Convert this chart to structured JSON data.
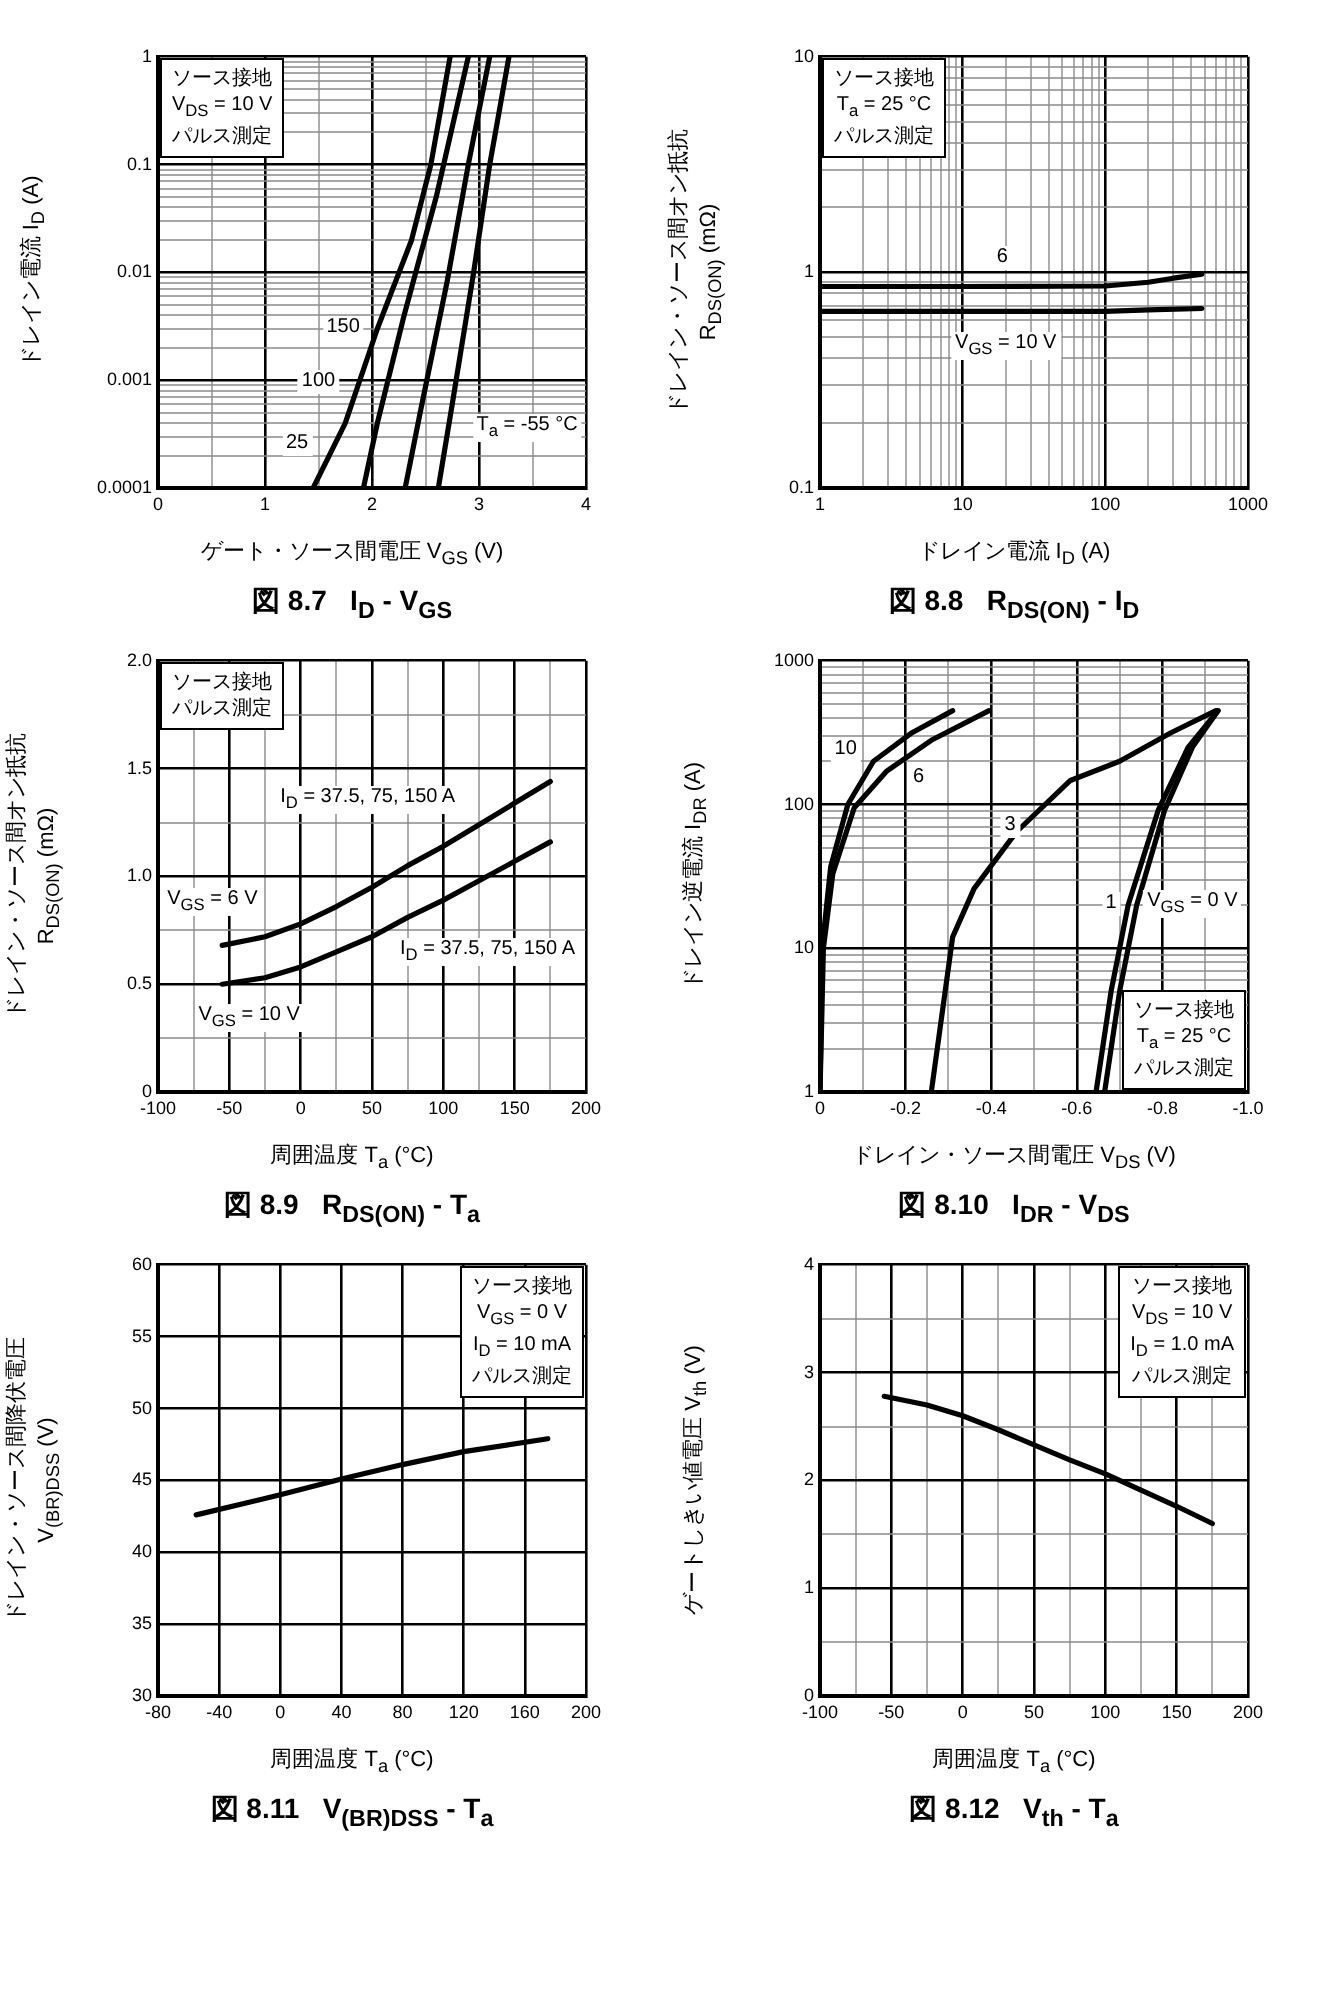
{
  "chart_data": [
    {
      "type": "line",
      "title": "図 8.7   I$_{D}$ - V$_{GS}$",
      "xlabel": "ゲート・ソース間電圧 V$_{GS}$ (V)",
      "ylabel": "ドレイン電流 I$_{D}$ (A)",
      "log": "y",
      "grid": true,
      "legend": false,
      "marker": "none",
      "line_style": "solid",
      "xlim": [
        0,
        4
      ],
      "xticks": [
        0,
        {
          "value": 0.5,
          "label": null
        },
        1,
        {
          "value": 1.5,
          "label": null
        },
        2,
        {
          "value": 2.5,
          "label": null
        },
        3,
        {
          "value": 3.5,
          "label": null
        },
        4
      ],
      "ylim": [
        0.0001,
        1
      ],
      "yticks": [
        0.0001,
        {
          "value": 0.0002,
          "label": null
        },
        {
          "value": 0.0003,
          "label": null
        },
        {
          "value": 0.0004,
          "label": null
        },
        {
          "value": 0.0005,
          "label": null
        },
        {
          "value": 0.0006,
          "label": null
        },
        {
          "value": 0.0007,
          "label": null
        },
        {
          "value": 0.0008,
          "label": null
        },
        {
          "value": 0.0009,
          "label": null
        },
        0.001,
        {
          "value": 0.002,
          "label": null
        },
        {
          "value": 0.003,
          "label": null
        },
        {
          "value": 0.004,
          "label": null
        },
        {
          "value": 0.005,
          "label": null
        },
        {
          "value": 0.006,
          "label": null
        },
        {
          "value": 0.007,
          "label": null
        },
        {
          "value": 0.008,
          "label": null
        },
        {
          "value": 0.009,
          "label": null
        },
        0.01,
        {
          "value": 0.02,
          "label": null
        },
        {
          "value": 0.03,
          "label": null
        },
        {
          "value": 0.04,
          "label": null
        },
        {
          "value": 0.05,
          "label": null
        },
        {
          "value": 0.06,
          "label": null
        },
        {
          "value": 0.07,
          "label": null
        },
        {
          "value": 0.08,
          "label": null
        },
        {
          "value": 0.09,
          "label": null
        },
        0.1,
        {
          "value": 0.2,
          "label": null
        },
        {
          "value": 0.3,
          "label": null
        },
        {
          "value": 0.4,
          "label": null
        },
        {
          "value": 0.5,
          "label": null
        },
        {
          "value": 0.6,
          "label": null
        },
        {
          "value": 0.7,
          "label": null
        },
        {
          "value": 0.8,
          "label": null
        },
        {
          "value": 0.9,
          "label": null
        },
        1
      ],
      "series": [
        {
          "color": "#000000",
          "x": [
            1.45,
            1.6,
            1.75,
            2.05,
            2.37,
            2.55,
            2.73
          ],
          "values": [
            0.0001,
            0.0002,
            0.0004,
            0.003,
            0.02,
            0.1,
            1
          ]
        },
        {
          "color": "#000000",
          "x": [
            1.92,
            2.05,
            2.3,
            2.6,
            2.9
          ],
          "values": [
            0.0001,
            0.0004,
            0.004,
            0.05,
            1
          ]
        },
        {
          "color": "#000000",
          "x": [
            2.31,
            2.45,
            2.7,
            2.9,
            3.1
          ],
          "values": [
            0.0001,
            0.0005,
            0.008,
            0.1,
            1
          ]
        },
        {
          "color": "#000000",
          "x": [
            2.62,
            2.75,
            2.95,
            3.1,
            3.28
          ],
          "values": [
            0.0001,
            0.0006,
            0.01,
            0.1,
            1
          ]
        }
      ],
      "annotations": [
        "ソース接地",
        "V$_{DS}$ = 10 V",
        "パルス測定",
        {
          "text": "150",
          "x": 1.73,
          "y": 0.003
        },
        {
          "text": "100",
          "x": 1.5,
          "y": 0.00095
        },
        {
          "text": "25",
          "x": 1.3,
          "y": 0.00026
        },
        "T$_{a}$ = -55 °C"
      ]
    },
    {
      "type": "line",
      "title": "図 8.8   R$_{DS(ON)}$ - I$_{D}$",
      "xlabel": "ドレイン電流 I$_{D}$ (A)",
      "ylabel": "ドレイン・ソース間オン抵抗\nR$_{DS(ON)}$ (mΩ)",
      "log": "xy",
      "grid": true,
      "legend": false,
      "marker": "none",
      "line_style": "solid",
      "xlim": [
        1,
        1000
      ],
      "xticks": [
        1,
        {
          "value": 2,
          "label": null
        },
        {
          "value": 3,
          "label": null
        },
        {
          "value": 4,
          "label": null
        },
        {
          "value": 5,
          "label": null
        },
        {
          "value": 6,
          "label": null
        },
        {
          "value": 7,
          "label": null
        },
        {
          "value": 8,
          "label": null
        },
        {
          "value": 9,
          "label": null
        },
        10,
        {
          "value": 20,
          "label": null
        },
        {
          "value": 30,
          "label": null
        },
        {
          "value": 40,
          "label": null
        },
        {
          "value": 50,
          "label": null
        },
        {
          "value": 60,
          "label": null
        },
        {
          "value": 70,
          "label": null
        },
        {
          "value": 80,
          "label": null
        },
        {
          "value": 90,
          "label": null
        },
        100,
        {
          "value": 200,
          "label": null
        },
        {
          "value": 300,
          "label": null
        },
        {
          "value": 400,
          "label": null
        },
        {
          "value": 500,
          "label": null
        },
        {
          "value": 600,
          "label": null
        },
        {
          "value": 700,
          "label": null
        },
        {
          "value": 800,
          "label": null
        },
        {
          "value": 900,
          "label": null
        },
        1000
      ],
      "ylim": [
        0.1,
        10
      ],
      "yticks": [
        0.1,
        {
          "value": 0.2,
          "label": null
        },
        {
          "value": 0.3,
          "label": null
        },
        {
          "value": 0.4,
          "label": null
        },
        {
          "value": 0.5,
          "label": null
        },
        {
          "value": 0.6,
          "label": null
        },
        {
          "value": 0.7,
          "label": null
        },
        {
          "value": 0.8,
          "label": null
        },
        {
          "value": 0.9,
          "label": null
        },
        1,
        {
          "value": 2,
          "label": null
        },
        {
          "value": 3,
          "label": null
        },
        {
          "value": 4,
          "label": null
        },
        {
          "value": 5,
          "label": null
        },
        {
          "value": 6,
          "label": null
        },
        {
          "value": 7,
          "label": null
        },
        {
          "value": 8,
          "label": null
        },
        {
          "value": 9,
          "label": null
        },
        10
      ],
      "series": [
        {
          "color": "#000000",
          "x": [
            1,
            10,
            100,
            200,
            300,
            475
          ],
          "values": [
            0.86,
            0.86,
            0.865,
            0.9,
            0.94,
            0.98
          ]
        },
        {
          "color": "#000000",
          "x": [
            1,
            100,
            200,
            475
          ],
          "values": [
            0.66,
            0.66,
            0.67,
            0.68
          ]
        }
      ],
      "annotations": [
        "ソース接地",
        "T$_{a}$ = 25 °C",
        "パルス測定",
        {
          "text": "6",
          "x": 19,
          "y": 1.16
        },
        "V$_{GS}$ = 10 V"
      ]
    },
    {
      "type": "line",
      "title": "図 8.9   R$_{DS(ON)}$ - T$_{a}$",
      "xlabel": "周囲温度 T$_{a}$ (°C)",
      "ylabel": "ドレイン・ソース間オン抵抗\nR$_{DS(ON)}$ (mΩ)",
      "grid": true,
      "legend": false,
      "marker": "none",
      "line_style": "solid",
      "xlim": [
        -100,
        200
      ],
      "xticks": [
        -100,
        {
          "value": -75,
          "label": null
        },
        -50,
        {
          "value": -25,
          "label": null
        },
        0,
        {
          "value": 25,
          "label": null
        },
        50,
        {
          "value": 75,
          "label": null
        },
        100,
        {
          "value": 125,
          "label": null
        },
        150,
        {
          "value": 175,
          "label": null
        },
        200
      ],
      "ylim": [
        0,
        2
      ],
      "yticks": [
        0,
        {
          "value": 0.25,
          "label": null
        },
        0.5,
        {
          "value": 0.75,
          "label": null
        },
        {
          "value": 1,
          "label": "1.0"
        },
        {
          "value": 1.25,
          "label": null
        },
        1.5,
        {
          "value": 1.75,
          "label": null
        },
        {
          "value": 2,
          "label": "2.0"
        }
      ],
      "series": [
        {
          "color": "#000000",
          "x": [
            -55,
            -25,
            0,
            25,
            50,
            75,
            100,
            125,
            150,
            175
          ],
          "values": [
            0.68,
            0.72,
            0.78,
            0.86,
            0.95,
            1.05,
            1.14,
            1.24,
            1.34,
            1.44
          ]
        },
        {
          "color": "#000000",
          "x": [
            -55,
            -25,
            0,
            25,
            50,
            75,
            100,
            125,
            150,
            175
          ],
          "values": [
            0.5,
            0.53,
            0.58,
            0.65,
            0.72,
            0.81,
            0.89,
            0.98,
            1.07,
            1.16
          ]
        }
      ],
      "annotations": [
        "ソース接地",
        "パルス測定",
        "I$_{D}$ = 37.5, 75, 150 A",
        "I$_{D}$ = 37.5, 75, 150 A",
        "V$_{GS}$ = 6 V",
        "V$_{GS}$ = 10 V"
      ]
    },
    {
      "type": "line",
      "title": "図 8.10   I$_{DR}$ - V$_{DS}$",
      "xlabel": "ドレイン・ソース間電圧 V$_{DS}$ (V)",
      "ylabel": "ドレイン逆電流 I$_{DR}$ (A)",
      "log": "y",
      "grid": true,
      "legend": false,
      "marker": "none",
      "line_style": "solid",
      "xlim": [
        0,
        -1
      ],
      "xticks": [
        0,
        {
          "value": -0.1,
          "label": null
        },
        -0.2,
        {
          "value": -0.3,
          "label": null
        },
        -0.4,
        {
          "value": -0.5,
          "label": null
        },
        -0.6,
        {
          "value": -0.7,
          "label": null
        },
        -0.8,
        {
          "value": -0.9,
          "label": null
        },
        {
          "value": -1,
          "label": "-1.0"
        }
      ],
      "ylim": [
        1,
        1000
      ],
      "yticks": [
        1,
        {
          "value": 2,
          "label": null
        },
        {
          "value": 3,
          "label": null
        },
        {
          "value": 4,
          "label": null
        },
        {
          "value": 5,
          "label": null
        },
        {
          "value": 6,
          "label": null
        },
        {
          "value": 7,
          "label": null
        },
        {
          "value": 8,
          "label": null
        },
        {
          "value": 9,
          "label": null
        },
        10,
        {
          "value": 20,
          "label": null
        },
        {
          "value": 30,
          "label": null
        },
        {
          "value": 40,
          "label": null
        },
        {
          "value": 50,
          "label": null
        },
        {
          "value": 60,
          "label": null
        },
        {
          "value": 70,
          "label": null
        },
        {
          "value": 80,
          "label": null
        },
        {
          "value": 90,
          "label": null
        },
        100,
        {
          "value": 200,
          "label": null
        },
        {
          "value": 300,
          "label": null
        },
        {
          "value": 400,
          "label": null
        },
        {
          "value": 500,
          "label": null
        },
        {
          "value": 600,
          "label": null
        },
        {
          "value": 700,
          "label": null
        },
        {
          "value": 800,
          "label": null
        },
        {
          "value": 900,
          "label": null
        },
        1000
      ],
      "series": [
        {
          "color": "#000000",
          "x": [
            0,
            -0.005,
            -0.025,
            -0.065,
            -0.125,
            -0.215,
            -0.31
          ],
          "values": [
            1,
            10,
            37,
            100,
            200,
            316,
            450
          ]
        },
        {
          "color": "#000000",
          "x": [
            0,
            -0.008,
            -0.03,
            -0.08,
            -0.155,
            -0.26,
            -0.395
          ],
          "values": [
            1,
            10,
            33,
            95,
            170,
            280,
            450
          ]
        },
        {
          "color": "#000000",
          "x": [
            -0.26,
            -0.31,
            -0.36,
            -0.46,
            -0.585,
            -0.7,
            -0.82,
            -0.925
          ],
          "values": [
            1,
            12,
            26,
            65,
            147,
            200,
            316,
            450
          ]
        },
        {
          "color": "#000000",
          "x": [
            -0.645,
            -0.68,
            -0.72,
            -0.79,
            -0.86,
            -0.93
          ],
          "values": [
            1,
            5,
            20,
            91,
            250,
            450
          ]
        },
        {
          "color": "#000000",
          "x": [
            -0.665,
            -0.7,
            -0.74,
            -0.805,
            -0.87,
            -0.93
          ],
          "values": [
            1,
            5,
            20,
            91,
            250,
            450
          ]
        }
      ],
      "annotations": [
        "ソース接地",
        "T$_{a}$ = 25 °C",
        "パルス測定",
        {
          "text": "10",
          "x": -0.06,
          "y": 240
        },
        {
          "text": "6",
          "x": -0.23,
          "y": 152
        },
        {
          "text": "3",
          "x": -0.444,
          "y": 71
        },
        {
          "text": "1",
          "x": -0.68,
          "y": 20
        },
        "V$_{GS}$ = 0 V"
      ]
    },
    {
      "type": "line",
      "title": "図 8.11   V$_{(BR)DSS}$ - T$_{a}$",
      "xlabel": "周囲温度 T$_{a}$ (°C)",
      "ylabel": "ドレイン・ソース間降伏電圧\nV$_{(BR)DSS}$ (V)",
      "grid": true,
      "legend": false,
      "marker": "none",
      "line_style": "solid",
      "xlim": [
        -80,
        200
      ],
      "xticks": [
        -80,
        -40,
        0,
        40,
        80,
        120,
        160,
        200
      ],
      "ylim": [
        30,
        60
      ],
      "yticks": [
        30,
        35,
        40,
        45,
        50,
        55,
        60
      ],
      "series": [
        {
          "color": "#000000",
          "x": [
            -55,
            0,
            40,
            80,
            120,
            175
          ],
          "values": [
            42.6,
            44.0,
            45.1,
            46.1,
            47.0,
            47.9
          ]
        }
      ],
      "annotations": [
        "ソース接地",
        "V$_{GS}$ = 0 V",
        "I$_{D}$ = 10 mA",
        "パルス測定"
      ]
    },
    {
      "type": "line",
      "title": "図 8.12   V$_{th}$ - T$_{a}$",
      "xlabel": "周囲温度 T$_{a}$ (°C)",
      "ylabel": "ゲートしきい値電圧 V$_{th}$ (V)",
      "grid": true,
      "legend": false,
      "marker": "none",
      "line_style": "solid",
      "xlim": [
        -100,
        200
      ],
      "xticks": [
        -100,
        {
          "value": -75,
          "label": null
        },
        -50,
        {
          "value": -25,
          "label": null
        },
        0,
        {
          "value": 25,
          "label": null
        },
        50,
        {
          "value": 75,
          "label": null
        },
        100,
        {
          "value": 125,
          "label": null
        },
        150,
        {
          "value": 175,
          "label": null
        },
        200
      ],
      "ylim": [
        0,
        4
      ],
      "yticks": [
        0,
        {
          "value": 0.5,
          "label": null
        },
        1,
        {
          "value": 1.5,
          "label": null
        },
        2,
        {
          "value": 2.5,
          "label": null
        },
        3,
        {
          "value": 3.5,
          "label": null
        },
        4
      ],
      "series": [
        {
          "color": "#000000",
          "x": [
            -55,
            -25,
            0,
            25,
            50,
            75,
            100,
            125,
            150,
            175
          ],
          "values": [
            2.78,
            2.7,
            2.6,
            2.47,
            2.33,
            2.19,
            2.06,
            1.91,
            1.76,
            1.6
          ]
        }
      ],
      "annotations": [
        "ソース接地",
        "V$_{DS}$ = 10 V",
        "I$_{D}$ = 1.0 mA",
        "パルス測定"
      ]
    }
  ]
}
